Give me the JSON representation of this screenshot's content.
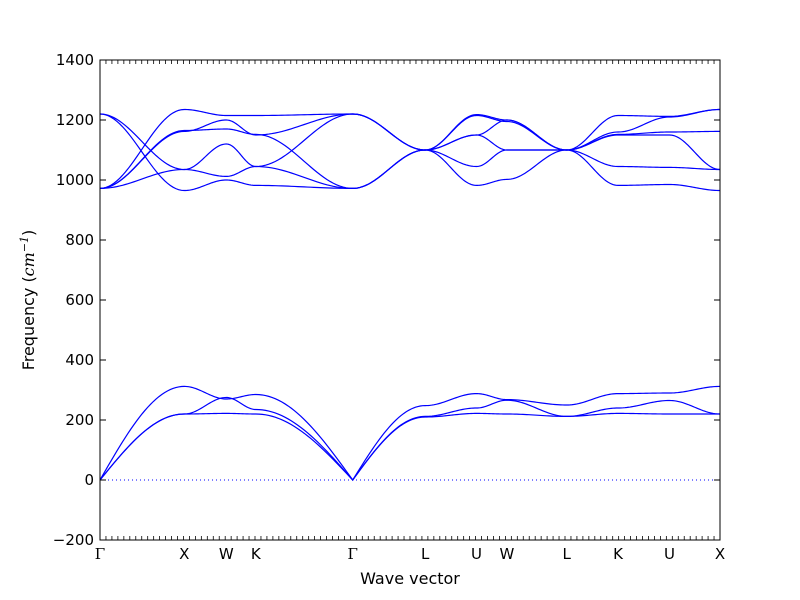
{
  "chart_data": {
    "type": "line",
    "title": "",
    "xlabel": "Wave vector",
    "ylabel": {
      "prefix": "Frequency (",
      "unit_base": "cm",
      "unit_exp": "−1",
      "suffix": ")"
    },
    "ylim": [
      -200,
      1400
    ],
    "yticks": [
      -200,
      0,
      200,
      400,
      600,
      800,
      1000,
      1200,
      1400
    ],
    "zero_line": true,
    "grid": false,
    "legend": "none",
    "line_color": "#0000ff",
    "path": {
      "xlim": [
        0,
        7.36
      ],
      "points": [
        {
          "label": "Γ",
          "x": 0
        },
        {
          "label": "X",
          "x": 1.0
        },
        {
          "label": "W",
          "x": 1.5
        },
        {
          "label": "K",
          "x": 1.85
        },
        {
          "label": "Γ",
          "x": 3.0
        },
        {
          "label": "L",
          "x": 3.86
        },
        {
          "label": "U",
          "x": 4.47
        },
        {
          "label": "W",
          "x": 4.83
        },
        {
          "label": "L",
          "x": 5.54
        },
        {
          "label": "K",
          "x": 6.15
        },
        {
          "label": "U",
          "x": 6.76
        },
        {
          "label": "X",
          "x": 7.36
        }
      ]
    },
    "series": [
      {
        "values": [
          0,
          312,
          270,
          285,
          0,
          248,
          288,
          268,
          250,
          288,
          290,
          312
        ]
      },
      {
        "values": [
          0,
          220,
          275,
          235,
          0,
          212,
          240,
          266,
          212,
          240,
          265,
          220
        ]
      },
      {
        "values": [
          0,
          220,
          222,
          220,
          0,
          210,
          222,
          220,
          212,
          222,
          220,
          220
        ]
      },
      {
        "values": [
          1220,
          965,
          1000,
          982,
          972,
          1100,
          982,
          1002,
          1100,
          982,
          985,
          965
        ]
      },
      {
        "values": [
          1220,
          1035,
          1012,
          1045,
          972,
          1100,
          1045,
          1100,
          1100,
          1045,
          1042,
          1035
        ]
      },
      {
        "values": [
          972,
          1035,
          1120,
          1045,
          1220,
          1100,
          1150,
          1100,
          1100,
          1150,
          1150,
          1035
        ]
      },
      {
        "values": [
          972,
          1162,
          1200,
          1150,
          1220,
          1100,
          1150,
          1200,
          1100,
          1152,
          1160,
          1162
        ]
      },
      {
        "values": [
          972,
          1165,
          1170,
          1152,
          972,
          1100,
          1215,
          1195,
          1100,
          1160,
          1210,
          1235
        ]
      },
      {
        "values": [
          972,
          1235,
          1215,
          1215,
          1220,
          1100,
          1218,
          1200,
          1100,
          1215,
          1212,
          1235
        ]
      }
    ]
  }
}
